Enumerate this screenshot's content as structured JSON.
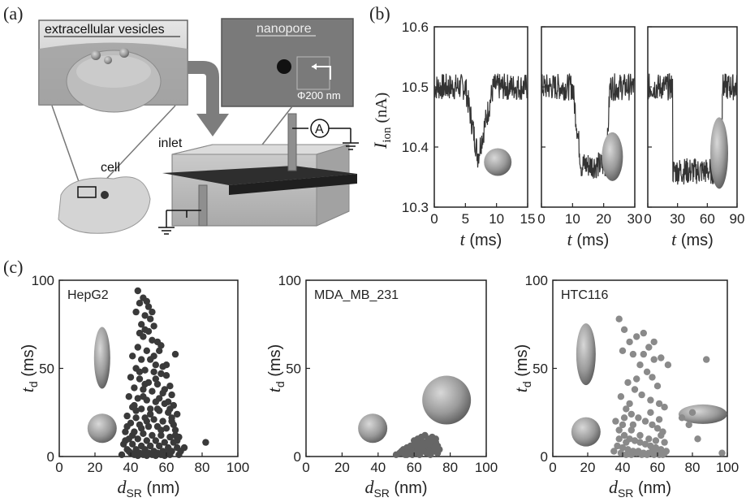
{
  "panel_labels": [
    "(a)",
    "(b)",
    "(c)"
  ],
  "schematic": {
    "ev_label": "extracellular vesicles",
    "nanopore_label": "nanopore",
    "pore_size": "Φ200 nm",
    "inlet_label": "inlet",
    "cell_label": "cell",
    "ammeter_symbol": "A"
  },
  "traces": {
    "ylabel_main": "I",
    "ylabel_sub": "ion",
    "ylabel_unit": " (nA)",
    "xlabel_var": "t",
    "xlabel_unit": " (ms)",
    "ylim": [
      10.3,
      10.6
    ],
    "yticks": [
      "10.3",
      "10.4",
      "10.5",
      "10.6"
    ],
    "panels": [
      {
        "xlim": [
          0,
          15
        ],
        "xticks": [
          "0",
          "5",
          "10",
          "15"
        ],
        "baseline": 10.5,
        "event": {
          "start": 5.0,
          "min_t": 7.0,
          "end": 9.5,
          "depth": 10.385,
          "shape": "v"
        },
        "shape_icon": "sphere"
      },
      {
        "xlim": [
          0,
          30
        ],
        "xticks": [
          "0",
          "10",
          "20",
          "30"
        ],
        "baseline": 10.5,
        "event": {
          "start": 10.0,
          "min_t": 16.0,
          "end": 22.0,
          "depth": 10.36,
          "shape": "u"
        },
        "shape_icon": "ellipsoid"
      },
      {
        "xlim": [
          0,
          90
        ],
        "xticks": [
          "0",
          "30",
          "60",
          "90"
        ],
        "baseline": 10.5,
        "event": {
          "start": 25.0,
          "min_t": 50.0,
          "end": 75.0,
          "depth": 10.34,
          "shape": "square"
        },
        "shape_icon": "long-ellipsoid"
      }
    ]
  },
  "chart_data": [
    {
      "type": "scatter",
      "title": "HepG2",
      "xlabel": "dSR (nm)",
      "ylabel": "td (ms)",
      "xlim": [
        0,
        100
      ],
      "ylim": [
        0,
        100
      ],
      "xticks": [
        "0",
        "20",
        "40",
        "60",
        "80",
        "100"
      ],
      "yticks": [
        "0",
        "50",
        "100"
      ],
      "point_color": "#3a3a3a",
      "points": [
        [
          44,
          94
        ],
        [
          47,
          90
        ],
        [
          49,
          88
        ],
        [
          45,
          87
        ],
        [
          50,
          85
        ],
        [
          43,
          82
        ],
        [
          48,
          80
        ],
        [
          51,
          78
        ],
        [
          46,
          75
        ],
        [
          53,
          74
        ],
        [
          45,
          70
        ],
        [
          47,
          68
        ],
        [
          52,
          66
        ],
        [
          55,
          65
        ],
        [
          44,
          62
        ],
        [
          49,
          60
        ],
        [
          56,
          60
        ],
        [
          65,
          58
        ],
        [
          41,
          57
        ],
        [
          46,
          55
        ],
        [
          51,
          55
        ],
        [
          54,
          52
        ],
        [
          58,
          51
        ],
        [
          43,
          50
        ],
        [
          48,
          49
        ],
        [
          53,
          48
        ],
        [
          57,
          47
        ],
        [
          60,
          46
        ],
        [
          40,
          45
        ],
        [
          45,
          44
        ],
        [
          50,
          42
        ],
        [
          55,
          41
        ],
        [
          62,
          40
        ],
        [
          42,
          39
        ],
        [
          47,
          38
        ],
        [
          52,
          37
        ],
        [
          58,
          36
        ],
        [
          63,
          35
        ],
        [
          39,
          34
        ],
        [
          44,
          33
        ],
        [
          49,
          32
        ],
        [
          54,
          31
        ],
        [
          59,
          30
        ],
        [
          64,
          29
        ],
        [
          41,
          28
        ],
        [
          46,
          27
        ],
        [
          51,
          27
        ],
        [
          56,
          26
        ],
        [
          61,
          25
        ],
        [
          66,
          24
        ],
        [
          38,
          23
        ],
        [
          43,
          22
        ],
        [
          48,
          22
        ],
        [
          53,
          21
        ],
        [
          58,
          20
        ],
        [
          63,
          20
        ],
        [
          40,
          19
        ],
        [
          45,
          18
        ],
        [
          50,
          17
        ],
        [
          55,
          17
        ],
        [
          60,
          16
        ],
        [
          65,
          15
        ],
        [
          37,
          14
        ],
        [
          42,
          14
        ],
        [
          47,
          13
        ],
        [
          52,
          12
        ],
        [
          57,
          12
        ],
        [
          62,
          11
        ],
        [
          67,
          11
        ],
        [
          39,
          10
        ],
        [
          44,
          10
        ],
        [
          49,
          9
        ],
        [
          54,
          9
        ],
        [
          59,
          8
        ],
        [
          64,
          8
        ],
        [
          82,
          8
        ],
        [
          36,
          7
        ],
        [
          41,
          7
        ],
        [
          46,
          6
        ],
        [
          51,
          6
        ],
        [
          56,
          6
        ],
        [
          61,
          5
        ],
        [
          66,
          5
        ],
        [
          70,
          5
        ],
        [
          38,
          4
        ],
        [
          43,
          4
        ],
        [
          48,
          4
        ],
        [
          53,
          3
        ],
        [
          58,
          3
        ],
        [
          63,
          3
        ],
        [
          40,
          2
        ],
        [
          45,
          2
        ],
        [
          50,
          2
        ],
        [
          55,
          2
        ],
        [
          60,
          2
        ],
        [
          35,
          1
        ],
        [
          42,
          1
        ],
        [
          47,
          1
        ],
        [
          52,
          1
        ],
        [
          57,
          1
        ],
        [
          62,
          1
        ],
        [
          67,
          1
        ],
        [
          44,
          0.5
        ],
        [
          49,
          0.5
        ],
        [
          54,
          0.5
        ],
        [
          59,
          0.5
        ],
        [
          39,
          3
        ],
        [
          46,
          16
        ],
        [
          51,
          24
        ],
        [
          56,
          33
        ],
        [
          42,
          29
        ],
        [
          48,
          41
        ],
        [
          53,
          57
        ],
        [
          57,
          63
        ],
        [
          60,
          52
        ],
        [
          61,
          31
        ],
        [
          63,
          22
        ],
        [
          65,
          12
        ],
        [
          37,
          9
        ],
        [
          38,
          17
        ],
        [
          50,
          71
        ],
        [
          52,
          82
        ],
        [
          48,
          72
        ],
        [
          45,
          48
        ],
        [
          54,
          44
        ],
        [
          59,
          38
        ],
        [
          62,
          27
        ],
        [
          64,
          18
        ],
        [
          66,
          9
        ],
        [
          68,
          3
        ],
        [
          41,
          12
        ],
        [
          43,
          26
        ],
        [
          47,
          34
        ],
        [
          49,
          20
        ],
        [
          55,
          27
        ],
        [
          57,
          15
        ]
      ]
    },
    {
      "type": "scatter",
      "title": "MDA_MB_231",
      "xlabel": "dSR (nm)",
      "ylabel": "td (ms)",
      "xlim": [
        0,
        100
      ],
      "ylim": [
        0,
        100
      ],
      "xticks": [
        "0",
        "20",
        "40",
        "60",
        "80",
        "100"
      ],
      "yticks": [
        "0",
        "50",
        "100"
      ],
      "point_color": "#666666",
      "points": [
        [
          50,
          1
        ],
        [
          52,
          2
        ],
        [
          54,
          2
        ],
        [
          55,
          3
        ],
        [
          56,
          1
        ],
        [
          57,
          4
        ],
        [
          58,
          3
        ],
        [
          59,
          5
        ],
        [
          60,
          2
        ],
        [
          61,
          6
        ],
        [
          62,
          4
        ],
        [
          63,
          7
        ],
        [
          64,
          3
        ],
        [
          65,
          8
        ],
        [
          66,
          5
        ],
        [
          67,
          6
        ],
        [
          68,
          9
        ],
        [
          69,
          4
        ],
        [
          70,
          7
        ],
        [
          71,
          5
        ],
        [
          72,
          8
        ],
        [
          73,
          6
        ],
        [
          74,
          4
        ],
        [
          60,
          9
        ],
        [
          62,
          10
        ],
        [
          64,
          11
        ],
        [
          66,
          12
        ],
        [
          68,
          10
        ],
        [
          70,
          11
        ],
        [
          65,
          3
        ],
        [
          63,
          1
        ],
        [
          61,
          2
        ],
        [
          67,
          2
        ],
        [
          69,
          1
        ],
        [
          71,
          3
        ],
        [
          73,
          2
        ],
        [
          58,
          6
        ],
        [
          56,
          5
        ],
        [
          54,
          4
        ],
        [
          53,
          3
        ],
        [
          55,
          1
        ],
        [
          57,
          2
        ],
        [
          59,
          1
        ],
        [
          64,
          6
        ],
        [
          66,
          8
        ],
        [
          68,
          7
        ],
        [
          70,
          9
        ],
        [
          72,
          10
        ],
        [
          62,
          8
        ],
        [
          60,
          7
        ]
      ]
    },
    {
      "type": "scatter",
      "title": "HTC116",
      "xlabel": "dSR (nm)",
      "ylabel": "td (ms)",
      "xlim": [
        0,
        100
      ],
      "ylim": [
        0,
        100
      ],
      "xticks": [
        "0",
        "20",
        "40",
        "60",
        "80",
        "100"
      ],
      "yticks": [
        "0",
        "50",
        "100"
      ],
      "point_color": "#8a8a8a",
      "points": [
        [
          38,
          78
        ],
        [
          41,
          72
        ],
        [
          44,
          65
        ],
        [
          48,
          68
        ],
        [
          52,
          70
        ],
        [
          55,
          62
        ],
        [
          58,
          55
        ],
        [
          62,
          56
        ],
        [
          40,
          60
        ],
        [
          46,
          58
        ],
        [
          50,
          52
        ],
        [
          54,
          48
        ],
        [
          57,
          45
        ],
        [
          60,
          40
        ],
        [
          43,
          42
        ],
        [
          47,
          38
        ],
        [
          51,
          35
        ],
        [
          56,
          32
        ],
        [
          61,
          30
        ],
        [
          64,
          28
        ],
        [
          39,
          34
        ],
        [
          42,
          27
        ],
        [
          45,
          24
        ],
        [
          49,
          22
        ],
        [
          53,
          20
        ],
        [
          57,
          18
        ],
        [
          60,
          16
        ],
        [
          63,
          14
        ],
        [
          36,
          20
        ],
        [
          38,
          15
        ],
        [
          41,
          12
        ],
        [
          44,
          10
        ],
        [
          47,
          9
        ],
        [
          50,
          8
        ],
        [
          53,
          7
        ],
        [
          56,
          6
        ],
        [
          59,
          5
        ],
        [
          62,
          4
        ],
        [
          65,
          3
        ],
        [
          37,
          6
        ],
        [
          40,
          5
        ],
        [
          43,
          4
        ],
        [
          46,
          3
        ],
        [
          49,
          3
        ],
        [
          52,
          2
        ],
        [
          55,
          2
        ],
        [
          58,
          1
        ],
        [
          61,
          1
        ],
        [
          64,
          2
        ],
        [
          39,
          2
        ],
        [
          42,
          1
        ],
        [
          45,
          1
        ],
        [
          48,
          2
        ],
        [
          51,
          1
        ],
        [
          54,
          1
        ],
        [
          57,
          3
        ],
        [
          60,
          3
        ],
        [
          63,
          1
        ],
        [
          40,
          18
        ],
        [
          44,
          30
        ],
        [
          48,
          44
        ],
        [
          52,
          58
        ],
        [
          56,
          25
        ],
        [
          58,
          65
        ],
        [
          62,
          12
        ],
        [
          66,
          52
        ],
        [
          74,
          22
        ],
        [
          78,
          18
        ],
        [
          80,
          25
        ],
        [
          83,
          10
        ],
        [
          88,
          55
        ],
        [
          97,
          2
        ],
        [
          45,
          15
        ],
        [
          50,
          12
        ],
        [
          55,
          10
        ],
        [
          59,
          9
        ],
        [
          61,
          21
        ],
        [
          38,
          10
        ],
        [
          42,
          8
        ],
        [
          35,
          3
        ],
        [
          64,
          8
        ],
        [
          41,
          22
        ],
        [
          46,
          18
        ]
      ]
    }
  ]
}
